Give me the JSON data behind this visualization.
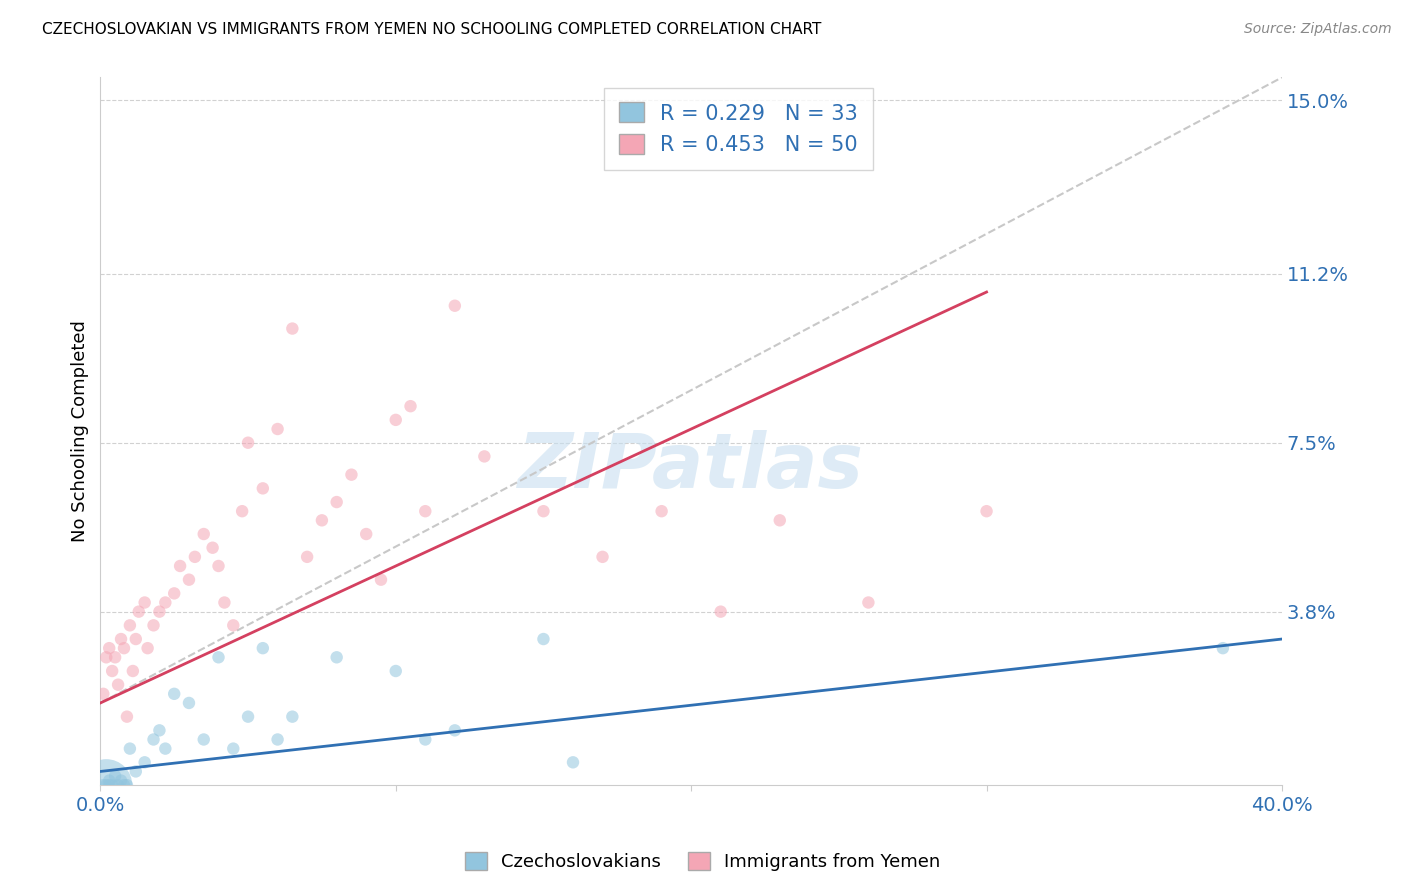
{
  "title": "CZECHOSLOVAKIAN VS IMMIGRANTS FROM YEMEN NO SCHOOLING COMPLETED CORRELATION CHART",
  "source": "Source: ZipAtlas.com",
  "ylabel": "No Schooling Completed",
  "xlim": [
    0.0,
    0.4
  ],
  "ylim": [
    0.0,
    0.155
  ],
  "xticks": [
    0.0,
    0.1,
    0.2,
    0.3,
    0.4
  ],
  "xticklabels": [
    "0.0%",
    "",
    "",
    "",
    "40.0%"
  ],
  "yticks": [
    0.038,
    0.075,
    0.112,
    0.15
  ],
  "yticklabels": [
    "3.8%",
    "7.5%",
    "11.2%",
    "15.0%"
  ],
  "blue_color": "#92c5de",
  "pink_color": "#f4a6b5",
  "blue_line_color": "#3070b3",
  "pink_line_color": "#d44060",
  "dashed_line_color": "#c8c8c8",
  "legend_R_blue": "0.229",
  "legend_N_blue": "33",
  "legend_R_pink": "0.453",
  "legend_N_pink": "50",
  "legend_label_blue": "Czechoslovakians",
  "legend_label_pink": "Immigrants from Yemen",
  "watermark": "ZIPatlas",
  "blue_scatter_x": [
    0.001,
    0.002,
    0.003,
    0.003,
    0.004,
    0.005,
    0.006,
    0.007,
    0.008,
    0.009,
    0.01,
    0.012,
    0.015,
    0.018,
    0.02,
    0.022,
    0.025,
    0.03,
    0.035,
    0.04,
    0.045,
    0.05,
    0.055,
    0.06,
    0.065,
    0.08,
    0.1,
    0.11,
    0.12,
    0.15,
    0.16,
    0.38,
    0.002
  ],
  "blue_scatter_y": [
    0.0,
    0.0,
    0.001,
    0.0,
    0.0,
    0.002,
    0.0,
    0.001,
    0.0,
    0.0,
    0.008,
    0.003,
    0.005,
    0.01,
    0.012,
    0.008,
    0.02,
    0.018,
    0.01,
    0.028,
    0.008,
    0.015,
    0.03,
    0.01,
    0.015,
    0.028,
    0.025,
    0.01,
    0.012,
    0.032,
    0.005,
    0.03,
    0.0
  ],
  "blue_scatter_size": [
    80,
    80,
    80,
    80,
    80,
    80,
    80,
    80,
    80,
    80,
    80,
    80,
    80,
    80,
    80,
    80,
    80,
    80,
    80,
    80,
    80,
    80,
    80,
    80,
    80,
    80,
    80,
    80,
    80,
    80,
    80,
    80,
    1400
  ],
  "pink_scatter_x": [
    0.001,
    0.002,
    0.003,
    0.004,
    0.005,
    0.006,
    0.007,
    0.008,
    0.009,
    0.01,
    0.011,
    0.012,
    0.013,
    0.015,
    0.016,
    0.018,
    0.02,
    0.022,
    0.025,
    0.027,
    0.03,
    0.032,
    0.035,
    0.038,
    0.04,
    0.042,
    0.045,
    0.048,
    0.05,
    0.055,
    0.06,
    0.065,
    0.07,
    0.075,
    0.08,
    0.085,
    0.09,
    0.095,
    0.1,
    0.105,
    0.11,
    0.12,
    0.13,
    0.15,
    0.17,
    0.19,
    0.21,
    0.23,
    0.26,
    0.3
  ],
  "pink_scatter_y": [
    0.02,
    0.028,
    0.03,
    0.025,
    0.028,
    0.022,
    0.032,
    0.03,
    0.015,
    0.035,
    0.025,
    0.032,
    0.038,
    0.04,
    0.03,
    0.035,
    0.038,
    0.04,
    0.042,
    0.048,
    0.045,
    0.05,
    0.055,
    0.052,
    0.048,
    0.04,
    0.035,
    0.06,
    0.075,
    0.065,
    0.078,
    0.1,
    0.05,
    0.058,
    0.062,
    0.068,
    0.055,
    0.045,
    0.08,
    0.083,
    0.06,
    0.105,
    0.072,
    0.06,
    0.05,
    0.06,
    0.038,
    0.058,
    0.04,
    0.06
  ],
  "pink_scatter_size": [
    80,
    80,
    80,
    80,
    80,
    80,
    80,
    80,
    80,
    80,
    80,
    80,
    80,
    80,
    80,
    80,
    80,
    80,
    80,
    80,
    80,
    80,
    80,
    80,
    80,
    80,
    80,
    80,
    80,
    80,
    80,
    80,
    80,
    80,
    80,
    80,
    80,
    80,
    80,
    80,
    80,
    80,
    80,
    80,
    80,
    80,
    80,
    80,
    80,
    80
  ],
  "blue_trend_x": [
    0.0,
    0.4
  ],
  "blue_trend_y": [
    0.003,
    0.032
  ],
  "pink_trend_x": [
    0.0,
    0.3
  ],
  "pink_trend_y": [
    0.018,
    0.108
  ],
  "dashed_trend_x": [
    0.0,
    0.4
  ],
  "dashed_trend_y": [
    0.018,
    0.155
  ]
}
